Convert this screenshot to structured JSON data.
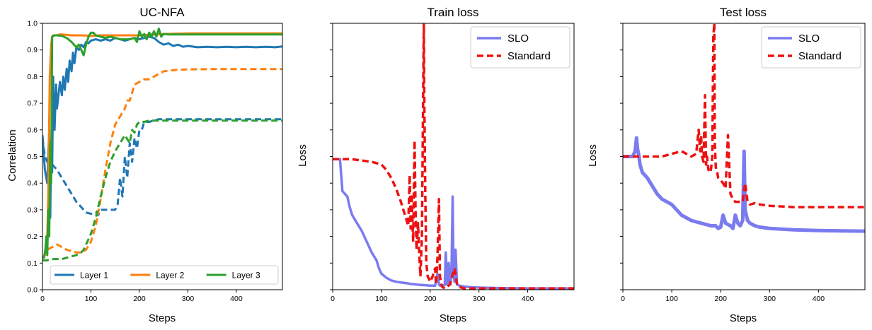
{
  "colors": {
    "blue": "#1f77b4",
    "orange": "#ff7f0e",
    "green": "#2ca02c",
    "slo": "#7b7bf0",
    "standard": "#ee1111"
  },
  "chart_data": [
    {
      "type": "line",
      "title": "UC-NFA",
      "xlabel": "Steps",
      "ylabel": "Correlation",
      "xlim": [
        0,
        495
      ],
      "ylim": [
        0.0,
        1.0
      ],
      "xticks": [
        "0",
        "100",
        "200",
        "300",
        "400"
      ],
      "xtick_values": [
        0,
        100,
        200,
        300,
        400
      ],
      "yticks": [
        "0.0",
        "0.1",
        "0.2",
        "0.3",
        "0.4",
        "0.5",
        "0.6",
        "0.7",
        "0.8",
        "0.9",
        "1.0"
      ],
      "ytick_values": [
        0,
        0.1,
        0.2,
        0.3,
        0.4,
        0.5,
        0.6,
        0.7,
        0.8,
        0.9,
        1.0
      ],
      "legend": {
        "position": "lower-center",
        "entries": [
          "Layer 1",
          "Layer 2",
          "Layer 3"
        ]
      },
      "series": [
        {
          "name": "Layer 1 (solid)",
          "color": "blue",
          "dash": "solid",
          "legend_index": 0,
          "x": [
            0,
            5,
            10,
            14,
            16,
            18,
            20,
            22,
            25,
            28,
            30,
            33,
            36,
            40,
            43,
            46,
            50,
            53,
            56,
            60,
            63,
            66,
            70,
            75,
            80,
            85,
            90,
            95,
            100,
            110,
            120,
            130,
            140,
            150,
            160,
            170,
            180,
            190,
            200,
            210,
            220,
            230,
            240,
            250,
            260,
            270,
            280,
            290,
            300,
            320,
            340,
            360,
            380,
            400,
            420,
            440,
            460,
            480,
            495
          ],
          "y": [
            0.58,
            0.45,
            0.4,
            0.6,
            0.27,
            0.56,
            0.44,
            0.8,
            0.6,
            0.77,
            0.68,
            0.73,
            0.78,
            0.73,
            0.8,
            0.75,
            0.83,
            0.78,
            0.86,
            0.82,
            0.89,
            0.85,
            0.91,
            0.9,
            0.92,
            0.91,
            0.93,
            0.925,
            0.935,
            0.94,
            0.935,
            0.94,
            0.935,
            0.945,
            0.94,
            0.935,
            0.94,
            0.945,
            0.94,
            0.945,
            0.95,
            0.945,
            0.93,
            0.92,
            0.925,
            0.915,
            0.92,
            0.912,
            0.915,
            0.91,
            0.912,
            0.91,
            0.912,
            0.91,
            0.912,
            0.91,
            0.912,
            0.91,
            0.913
          ]
        },
        {
          "name": "Layer 1 (dashed)",
          "color": "blue",
          "dash": "dashed",
          "x": [
            0,
            5,
            10,
            20,
            30,
            40,
            50,
            60,
            70,
            80,
            90,
            100,
            110,
            115,
            120,
            125,
            130,
            135,
            140,
            145,
            150,
            155,
            160,
            165,
            170,
            175,
            180,
            185,
            190,
            195,
            200,
            205,
            210,
            220,
            230,
            240,
            250,
            300,
            350,
            400,
            450,
            495
          ],
          "y": [
            0.57,
            0.5,
            0.48,
            0.47,
            0.45,
            0.42,
            0.39,
            0.36,
            0.33,
            0.31,
            0.29,
            0.285,
            0.29,
            0.28,
            0.3,
            0.3,
            0.3,
            0.3,
            0.3,
            0.3,
            0.3,
            0.32,
            0.42,
            0.35,
            0.5,
            0.42,
            0.55,
            0.48,
            0.57,
            0.53,
            0.6,
            0.6,
            0.63,
            0.63,
            0.635,
            0.64,
            0.64,
            0.64,
            0.64,
            0.64,
            0.64,
            0.64
          ]
        },
        {
          "name": "Layer 2 (solid)",
          "color": "orange",
          "dash": "solid",
          "legend_index": 1,
          "x": [
            0,
            5,
            8,
            10,
            12,
            15,
            18,
            20,
            22,
            25,
            30,
            35,
            40,
            60,
            80,
            100,
            120,
            150,
            200,
            250,
            300,
            350,
            400,
            450,
            495
          ],
          "y": [
            0.12,
            0.13,
            0.15,
            0.2,
            0.35,
            0.8,
            0.92,
            0.95,
            0.955,
            0.955,
            0.955,
            0.958,
            0.958,
            0.955,
            0.955,
            0.953,
            0.955,
            0.955,
            0.955,
            0.96,
            0.962,
            0.962,
            0.962,
            0.962,
            0.962
          ]
        },
        {
          "name": "Layer 2 (dashed)",
          "color": "orange",
          "dash": "dashed",
          "x": [
            0,
            5,
            10,
            20,
            30,
            40,
            50,
            60,
            70,
            80,
            90,
            100,
            110,
            120,
            130,
            140,
            150,
            160,
            170,
            175,
            180,
            190,
            200,
            210,
            220,
            230,
            240,
            250,
            275,
            300,
            350,
            400,
            450,
            495
          ],
          "y": [
            0.12,
            0.13,
            0.15,
            0.16,
            0.17,
            0.16,
            0.15,
            0.145,
            0.14,
            0.14,
            0.15,
            0.18,
            0.24,
            0.34,
            0.45,
            0.55,
            0.62,
            0.65,
            0.68,
            0.71,
            0.71,
            0.77,
            0.78,
            0.79,
            0.79,
            0.8,
            0.81,
            0.82,
            0.825,
            0.827,
            0.828,
            0.828,
            0.828,
            0.828
          ]
        },
        {
          "name": "Layer 3 (solid)",
          "color": "green",
          "dash": "solid",
          "legend_index": 2,
          "x": [
            0,
            3,
            6,
            8,
            10,
            12,
            14,
            16,
            18,
            20,
            25,
            30,
            40,
            50,
            60,
            70,
            75,
            80,
            85,
            90,
            95,
            100,
            105,
            110,
            120,
            130,
            140,
            150,
            160,
            170,
            180,
            190,
            195,
            200,
            205,
            210,
            215,
            220,
            225,
            230,
            235,
            240,
            245,
            250,
            260,
            280,
            300,
            350,
            400,
            450,
            495
          ],
          "y": [
            0.12,
            0.12,
            0.15,
            0.2,
            0.13,
            0.3,
            0.2,
            0.55,
            0.4,
            0.95,
            0.955,
            0.955,
            0.953,
            0.945,
            0.93,
            0.91,
            0.92,
            0.9,
            0.88,
            0.92,
            0.95,
            0.965,
            0.965,
            0.955,
            0.95,
            0.945,
            0.95,
            0.945,
            0.94,
            0.94,
            0.94,
            0.945,
            0.93,
            0.97,
            0.95,
            0.96,
            0.94,
            0.965,
            0.95,
            0.97,
            0.95,
            0.98,
            0.95,
            0.96,
            0.958,
            0.958,
            0.958,
            0.958,
            0.958,
            0.958,
            0.958
          ]
        },
        {
          "name": "Layer 3 (dashed)",
          "color": "green",
          "dash": "dashed",
          "x": [
            0,
            10,
            20,
            30,
            40,
            50,
            60,
            70,
            80,
            85,
            90,
            95,
            100,
            105,
            110,
            115,
            120,
            130,
            140,
            150,
            160,
            170,
            180,
            185,
            190,
            195,
            200,
            210,
            220,
            230,
            250,
            300,
            350,
            400,
            450,
            495
          ],
          "y": [
            0.11,
            0.11,
            0.115,
            0.115,
            0.115,
            0.12,
            0.125,
            0.13,
            0.14,
            0.15,
            0.17,
            0.19,
            0.21,
            0.24,
            0.27,
            0.31,
            0.35,
            0.42,
            0.48,
            0.52,
            0.55,
            0.58,
            0.55,
            0.6,
            0.59,
            0.62,
            0.63,
            0.63,
            0.635,
            0.635,
            0.635,
            0.635,
            0.635,
            0.635,
            0.635,
            0.635
          ]
        }
      ]
    },
    {
      "type": "line",
      "title": "Train loss",
      "xlabel": "Steps",
      "ylabel": "Loss",
      "xlim": [
        0,
        495
      ],
      "ylim": [
        0.0,
        1.0
      ],
      "xticks": [
        "0",
        "100",
        "200",
        "300",
        "400"
      ],
      "xtick_values": [
        0,
        100,
        200,
        300,
        400
      ],
      "ytick_values": [
        0,
        0.1,
        0.2,
        0.3,
        0.4,
        0.5,
        0.6,
        0.7,
        0.8,
        0.9,
        1.0
      ],
      "legend": {
        "position": "top-right",
        "entries": [
          "SLO",
          "Standard"
        ]
      },
      "series": [
        {
          "name": "SLO",
          "color": "slo",
          "dash": "solid",
          "legend_index": 0,
          "width": 3.5,
          "x": [
            0,
            5,
            10,
            15,
            18,
            20,
            25,
            30,
            35,
            40,
            45,
            50,
            60,
            70,
            80,
            90,
            95,
            100,
            110,
            120,
            130,
            140,
            150,
            160,
            170,
            180,
            190,
            200,
            210,
            215,
            218,
            220,
            225,
            230,
            232,
            235,
            238,
            240,
            242,
            244,
            246,
            248,
            250,
            252,
            255,
            260,
            270,
            280,
            300,
            350,
            400,
            450,
            495
          ],
          "y": [
            0.49,
            0.49,
            0.49,
            0.49,
            0.42,
            0.37,
            0.36,
            0.35,
            0.31,
            0.28,
            0.265,
            0.25,
            0.22,
            0.18,
            0.14,
            0.11,
            0.08,
            0.06,
            0.045,
            0.035,
            0.03,
            0.027,
            0.025,
            0.022,
            0.02,
            0.018,
            0.017,
            0.015,
            0.015,
            0.06,
            0.02,
            0.015,
            0.015,
            0.018,
            0.14,
            0.02,
            0.1,
            0.03,
            0.02,
            0.1,
            0.35,
            0.05,
            0.03,
            0.15,
            0.02,
            0.015,
            0.012,
            0.01,
            0.008,
            0.006,
            0.005,
            0.005,
            0.005
          ]
        },
        {
          "name": "Standard",
          "color": "standard",
          "dash": "dashed",
          "legend_index": 1,
          "width": 3.5,
          "x": [
            0,
            20,
            40,
            60,
            80,
            100,
            110,
            120,
            130,
            140,
            150,
            155,
            158,
            160,
            162,
            165,
            168,
            170,
            172,
            175,
            178,
            180,
            183,
            185,
            187,
            188,
            190,
            192,
            195,
            200,
            205,
            210,
            212,
            215,
            218,
            220,
            223,
            225,
            230,
            235,
            240,
            245,
            250,
            255,
            260,
            270,
            280,
            300,
            350,
            400,
            450,
            495
          ],
          "y": [
            0.49,
            0.49,
            0.49,
            0.485,
            0.48,
            0.47,
            0.45,
            0.42,
            0.38,
            0.33,
            0.27,
            0.24,
            0.43,
            0.23,
            0.36,
            0.18,
            0.56,
            0.3,
            0.15,
            0.25,
            0.12,
            0.05,
            0.2,
            0.6,
            1.0,
            0.7,
            0.35,
            0.1,
            0.05,
            0.03,
            0.05,
            0.08,
            0.02,
            0.12,
            0.34,
            0.05,
            0.02,
            0.01,
            0.005,
            0.01,
            0.02,
            0.05,
            0.08,
            0.02,
            0.01,
            0.005,
            0.005,
            0.005,
            0.005,
            0.005,
            0.005,
            0.005
          ]
        }
      ]
    },
    {
      "type": "line",
      "title": "Test loss",
      "xlabel": "Steps",
      "ylabel": "Loss",
      "xlim": [
        0,
        495
      ],
      "ylim": [
        0.0,
        1.0
      ],
      "xticks": [
        "0",
        "100",
        "200",
        "300",
        "400"
      ],
      "xtick_values": [
        0,
        100,
        200,
        300,
        400
      ],
      "ytick_values": [
        0,
        0.1,
        0.2,
        0.3,
        0.4,
        0.5,
        0.6,
        0.7,
        0.8,
        0.9,
        1.0
      ],
      "legend": {
        "position": "top-right",
        "entries": [
          "SLO",
          "Standard"
        ]
      },
      "series": [
        {
          "name": "SLO",
          "color": "slo",
          "dash": "solid",
          "legend_index": 0,
          "width": 5,
          "x": [
            0,
            10,
            20,
            25,
            28,
            30,
            33,
            35,
            40,
            50,
            60,
            70,
            80,
            90,
            100,
            110,
            120,
            140,
            160,
            180,
            190,
            195,
            200,
            205,
            210,
            220,
            225,
            230,
            235,
            240,
            245,
            248,
            250,
            255,
            260,
            270,
            280,
            300,
            350,
            400,
            450,
            495
          ],
          "y": [
            0.5,
            0.5,
            0.5,
            0.52,
            0.57,
            0.53,
            0.5,
            0.47,
            0.44,
            0.42,
            0.39,
            0.36,
            0.34,
            0.33,
            0.32,
            0.3,
            0.28,
            0.26,
            0.25,
            0.24,
            0.24,
            0.23,
            0.235,
            0.28,
            0.25,
            0.24,
            0.23,
            0.28,
            0.25,
            0.24,
            0.26,
            0.52,
            0.3,
            0.26,
            0.25,
            0.24,
            0.235,
            0.23,
            0.225,
            0.222,
            0.221,
            0.22
          ]
        },
        {
          "name": "Standard",
          "color": "standard",
          "dash": "dashed",
          "legend_index": 1,
          "width": 3.5,
          "x": [
            0,
            20,
            40,
            60,
            80,
            100,
            120,
            140,
            150,
            155,
            158,
            160,
            162,
            165,
            168,
            170,
            172,
            175,
            178,
            180,
            183,
            185,
            187,
            188,
            190,
            193,
            195,
            200,
            205,
            210,
            215,
            220,
            225,
            230,
            240,
            245,
            250,
            255,
            260,
            270,
            280,
            300,
            350,
            400,
            450,
            495
          ],
          "y": [
            0.5,
            0.5,
            0.5,
            0.5,
            0.5,
            0.51,
            0.52,
            0.5,
            0.51,
            0.6,
            0.52,
            0.58,
            0.5,
            0.48,
            0.73,
            0.47,
            0.5,
            0.45,
            0.44,
            0.45,
            0.5,
            0.95,
            1.0,
            0.55,
            0.46,
            0.44,
            0.42,
            0.41,
            0.4,
            0.38,
            0.58,
            0.36,
            0.34,
            0.33,
            0.33,
            0.33,
            0.4,
            0.33,
            0.32,
            0.325,
            0.32,
            0.315,
            0.31,
            0.31,
            0.31,
            0.31
          ]
        }
      ]
    }
  ]
}
